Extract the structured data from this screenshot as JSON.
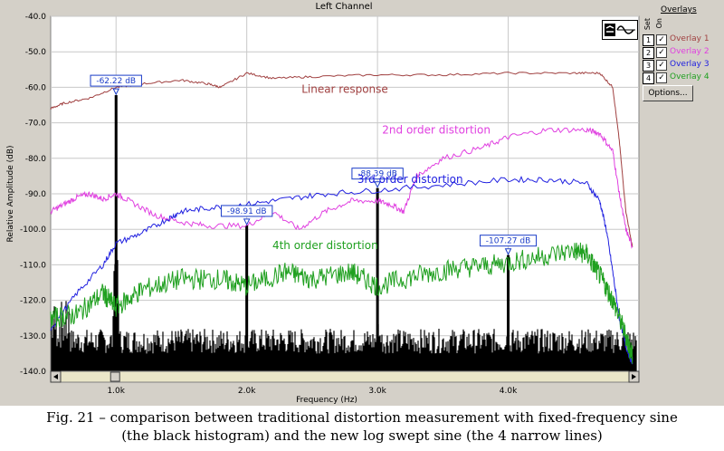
{
  "window": {
    "title": "Left Channel"
  },
  "overlays": {
    "title": "Overlays",
    "set_header": "Set",
    "on_header": "On",
    "items": [
      {
        "number": "1",
        "label": "Overlay 1",
        "checked": true,
        "color": "#a04040"
      },
      {
        "number": "2",
        "label": "Overlay 2",
        "checked": true,
        "color": "#e040e0"
      },
      {
        "number": "3",
        "label": "Overlay 3",
        "checked": true,
        "color": "#2020e0"
      },
      {
        "number": "4",
        "label": "Overlay 4",
        "checked": true,
        "color": "#20a020"
      }
    ],
    "options_label": "Options..."
  },
  "chart_data": {
    "type": "line",
    "title": "Left Channel",
    "xlabel": "Frequency (Hz)",
    "ylabel": "Relative Amplitude (dB)",
    "xlim": [
      500,
      5000
    ],
    "ylim": [
      -140,
      -40
    ],
    "x_ticks": [
      1000,
      2000,
      3000,
      4000
    ],
    "x_tick_labels": [
      "1.0k",
      "2.0k",
      "3.0k",
      "4.0k"
    ],
    "y_ticks": [
      -40,
      -50,
      -60,
      -70,
      -80,
      -90,
      -100,
      -110,
      -120,
      -130,
      -140
    ],
    "y_tick_labels": [
      "-40.0",
      "-50.0",
      "-60.0",
      "-70.0",
      "-80.0",
      "-90.0",
      "-100.0",
      "-110.0",
      "-120.0",
      "-130.0",
      "-140.0"
    ],
    "grid": true,
    "background": "#ffffff",
    "series": [
      {
        "name": "Linear response",
        "color": "#a04040",
        "x": [
          500,
          600,
          800,
          1000,
          1200,
          1500,
          1700,
          1800,
          2000,
          2200,
          2500,
          3000,
          3500,
          4000,
          4500,
          4700,
          4800,
          4850,
          4900,
          4950
        ],
        "y": [
          -66,
          -64.5,
          -63,
          -60,
          -59,
          -58,
          -59,
          -60,
          -56,
          -57.5,
          -57,
          -56.5,
          -56.5,
          -56,
          -56,
          -56,
          -60,
          -75,
          -95,
          -105
        ]
      },
      {
        "name": "2nd order distortion",
        "color": "#e040e0",
        "x": [
          500,
          600,
          700,
          800,
          900,
          1000,
          1100,
          1300,
          1500,
          1700,
          2000,
          2200,
          2400,
          2600,
          2800,
          3000,
          3100,
          3200,
          3300,
          3500,
          3800,
          4000,
          4300,
          4600,
          4700,
          4800,
          4850,
          4900,
          4950
        ],
        "y": [
          -95,
          -93,
          -91,
          -90,
          -91.5,
          -90,
          -92,
          -96,
          -98,
          -99,
          -99,
          -95,
          -100,
          -95,
          -92,
          -92,
          -93,
          -95,
          -85,
          -80,
          -77,
          -74,
          -72,
          -72,
          -73,
          -78,
          -90,
          -100,
          -105
        ]
      },
      {
        "name": "3rd order distortion",
        "color": "#2020e0",
        "x": [
          500,
          700,
          900,
          1000,
          1200,
          1400,
          1500,
          1700,
          2000,
          2300,
          2600,
          3000,
          3500,
          4000,
          4300,
          4600,
          4700,
          4750,
          4800,
          4850,
          4900,
          4950
        ],
        "y": [
          -128,
          -118,
          -110,
          -104,
          -101,
          -97,
          -95,
          -94,
          -93,
          -91.5,
          -90,
          -89,
          -87.5,
          -86,
          -86,
          -87,
          -92,
          -100,
          -112,
          -125,
          -133,
          -138
        ]
      },
      {
        "name": "4th order distortion",
        "color": "#20a020",
        "x": [
          500,
          700,
          900,
          1000,
          1200,
          1500,
          1800,
          2000,
          2300,
          2500,
          2800,
          3000,
          3300,
          3600,
          3900,
          4200,
          4500,
          4600,
          4700,
          4800,
          4900,
          4950
        ],
        "y": [
          -125,
          -124,
          -118,
          -122,
          -117,
          -114,
          -114,
          -116,
          -112,
          -114,
          -112,
          -116,
          -113,
          -111,
          -110,
          -108,
          -106,
          -107,
          -113,
          -120,
          -130,
          -136
        ]
      }
    ],
    "histogram_peaks": [
      {
        "x": 1000,
        "y": -62.22,
        "label": "-62.22 dB"
      },
      {
        "x": 2000,
        "y": -98.91,
        "label": "-98.91 dB"
      },
      {
        "x": 3000,
        "y": -88.39,
        "label": "-88.39 dB"
      },
      {
        "x": 4000,
        "y": -107.27,
        "label": "-107.27 dB"
      }
    ],
    "histogram_noise_floor": -132,
    "annotations": [
      {
        "text": "Linear response",
        "x": 2750,
        "y": -61.5,
        "color": "#a04040"
      },
      {
        "text": "2nd order distortion",
        "x": 3450,
        "y": -73,
        "color": "#e040e0"
      },
      {
        "text": "3rd order distortion",
        "x": 3250,
        "y": -87,
        "color": "#2020e0"
      },
      {
        "text": "4th order distortion",
        "x": 2600,
        "y": -105.5,
        "color": "#20a020"
      }
    ]
  },
  "caption": {
    "line1": "Fig. 21 – comparison between traditional distortion measurement with fixed-frequency sine",
    "line2": "(the black histogram) and the new log swept sine (the 4 narrow lines)"
  }
}
